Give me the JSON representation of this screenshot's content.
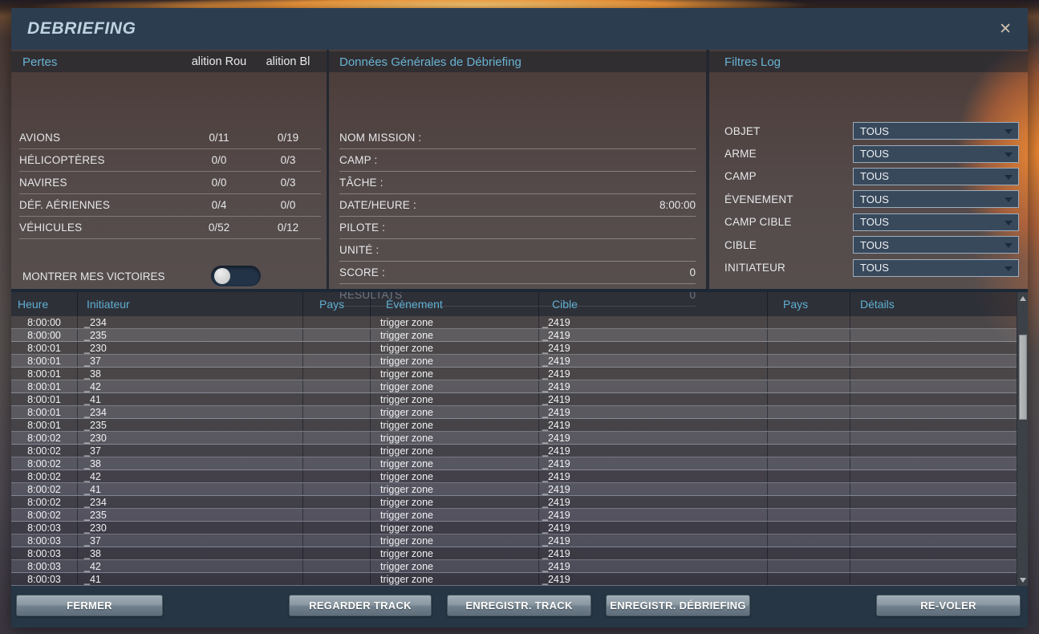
{
  "window": {
    "title": "DEBRIEFING",
    "close_icon": "✕"
  },
  "colors": {
    "accent_cyan": "#5fb0d2",
    "titlebar_bg": "#2c3d50",
    "dropdown_bg": "#38495c",
    "button_face": "#8a98a2"
  },
  "pertes": {
    "title": "Pertes",
    "col_headers": [
      "alition Rou",
      "alition Bl"
    ],
    "rows": [
      {
        "label": "AVIONS",
        "red": "0/11",
        "blue": "0/19"
      },
      {
        "label": "HÉLICOPTÈRES",
        "red": "0/0",
        "blue": "0/3"
      },
      {
        "label": "NAVIRES",
        "red": "0/0",
        "blue": "0/3"
      },
      {
        "label": "DÉF. AÉRIENNES",
        "red": "0/4",
        "blue": "0/0"
      },
      {
        "label": "VÉHICULES",
        "red": "0/52",
        "blue": "0/12"
      }
    ],
    "toggle_label": "MONTRER MES VICTOIRES",
    "toggle_state": "off"
  },
  "donnees": {
    "title": "Données Générales de Débriefing",
    "fields": [
      {
        "label": "NOM MISSION :",
        "value": ""
      },
      {
        "label": "CAMP :",
        "value": ""
      },
      {
        "label": "TÂCHE :",
        "value": ""
      },
      {
        "label": "DATE/HEURE :",
        "value": "8:00:00"
      },
      {
        "label": "PILOTE :",
        "value": ""
      },
      {
        "label": "UNITÉ :",
        "value": ""
      },
      {
        "label": "SCORE :",
        "value": "0"
      },
      {
        "label": "RESULTATS",
        "value": "0"
      }
    ]
  },
  "filtres": {
    "title": "Filtres Log",
    "items": [
      {
        "label": "OBJET",
        "value": "TOUS"
      },
      {
        "label": "ARME",
        "value": "TOUS"
      },
      {
        "label": "CAMP",
        "value": "TOUS"
      },
      {
        "label": "ÉVENEMENT",
        "value": "TOUS"
      },
      {
        "label": "CAMP CIBLE",
        "value": "TOUS"
      },
      {
        "label": "CIBLE",
        "value": "TOUS"
      },
      {
        "label": "INITIATEUR",
        "value": "TOUS"
      }
    ]
  },
  "log_table": {
    "columns": [
      "Heure",
      "Initiateur",
      "Pays",
      "Évènement",
      "Cible",
      "Pays",
      "Détails"
    ],
    "rows": [
      [
        "8:00:00",
        "_234",
        "",
        "trigger zone",
        "_2419",
        "",
        ""
      ],
      [
        "8:00:00",
        "_235",
        "",
        "trigger zone",
        "_2419",
        "",
        ""
      ],
      [
        "8:00:01",
        "_230",
        "",
        "trigger zone",
        "_2419",
        "",
        ""
      ],
      [
        "8:00:01",
        "_37",
        "",
        "trigger zone",
        "_2419",
        "",
        ""
      ],
      [
        "8:00:01",
        "_38",
        "",
        "trigger zone",
        "_2419",
        "",
        ""
      ],
      [
        "8:00:01",
        "_42",
        "",
        "trigger zone",
        "_2419",
        "",
        ""
      ],
      [
        "8:00:01",
        "_41",
        "",
        "trigger zone",
        "_2419",
        "",
        ""
      ],
      [
        "8:00:01",
        "_234",
        "",
        "trigger zone",
        "_2419",
        "",
        ""
      ],
      [
        "8:00:01",
        "_235",
        "",
        "trigger zone",
        "_2419",
        "",
        ""
      ],
      [
        "8:00:02",
        "_230",
        "",
        "trigger zone",
        "_2419",
        "",
        ""
      ],
      [
        "8:00:02",
        "_37",
        "",
        "trigger zone",
        "_2419",
        "",
        ""
      ],
      [
        "8:00:02",
        "_38",
        "",
        "trigger zone",
        "_2419",
        "",
        ""
      ],
      [
        "8:00:02",
        "_42",
        "",
        "trigger zone",
        "_2419",
        "",
        ""
      ],
      [
        "8:00:02",
        "_41",
        "",
        "trigger zone",
        "_2419",
        "",
        ""
      ],
      [
        "8:00:02",
        "_234",
        "",
        "trigger zone",
        "_2419",
        "",
        ""
      ],
      [
        "8:00:02",
        "_235",
        "",
        "trigger zone",
        "_2419",
        "",
        ""
      ],
      [
        "8:00:03",
        "_230",
        "",
        "trigger zone",
        "_2419",
        "",
        ""
      ],
      [
        "8:00:03",
        "_37",
        "",
        "trigger zone",
        "_2419",
        "",
        ""
      ],
      [
        "8:00:03",
        "_38",
        "",
        "trigger zone",
        "_2419",
        "",
        ""
      ],
      [
        "8:00:03",
        "_42",
        "",
        "trigger zone",
        "_2419",
        "",
        ""
      ],
      [
        "8:00:03",
        "_41",
        "",
        "trigger zone",
        "_2419",
        "",
        ""
      ]
    ]
  },
  "buttons": [
    {
      "label": "FERMER"
    },
    {
      "label": "REGARDER TRACK"
    },
    {
      "label": "ENREGISTR. TRACK"
    },
    {
      "label": "ENREGISTR. DÉBRIEFING"
    },
    {
      "label": "RE-VOLER"
    }
  ]
}
